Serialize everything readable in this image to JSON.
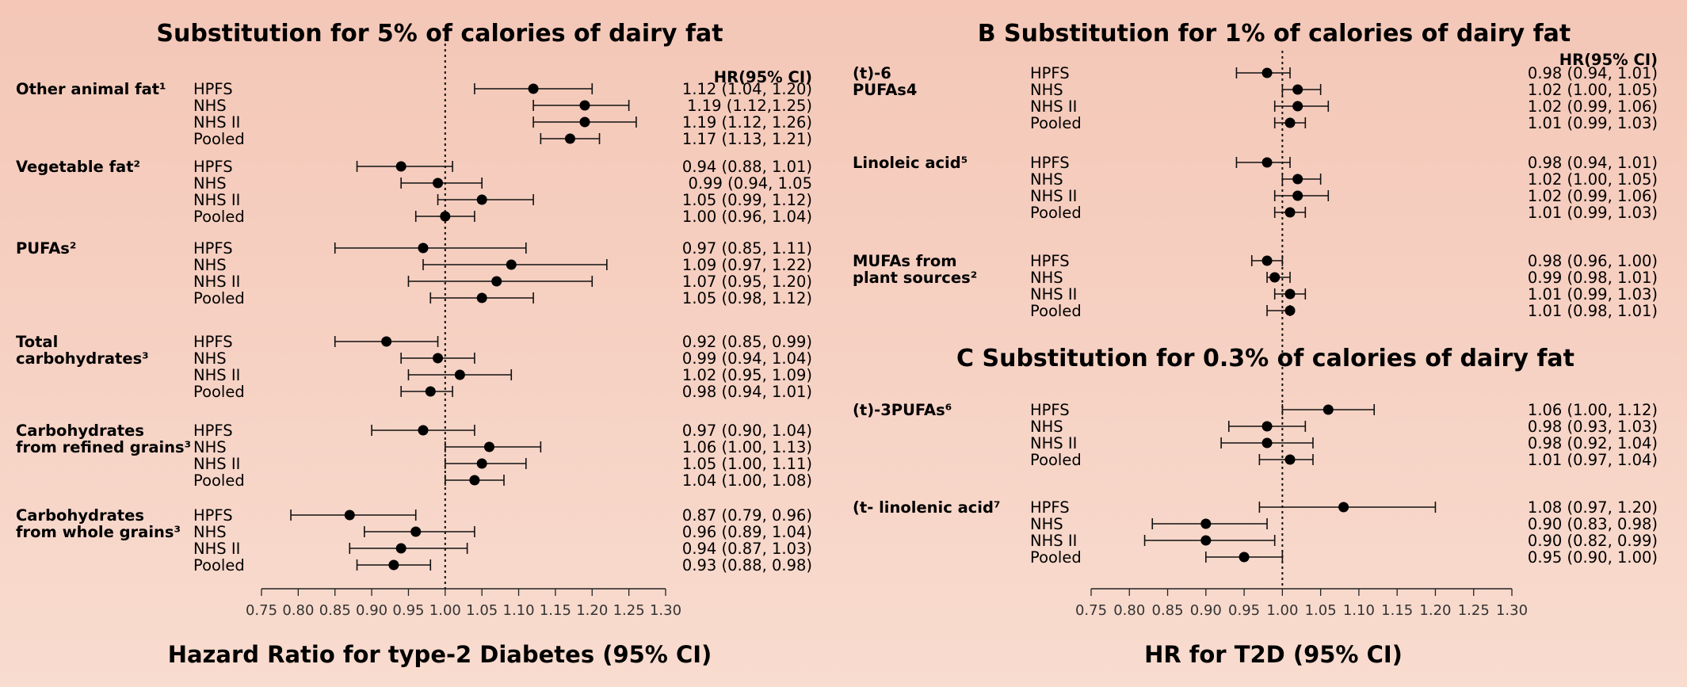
{
  "chart_data": [
    {
      "type": "forest",
      "title": "Substitution for 5% of calories of dairy fat",
      "xlabel": "Hazard Ratio for type-2 Diabetes (95% CI)",
      "hr_header": "HR(95% CI)",
      "xlim": [
        0.75,
        1.3
      ],
      "xticks": [
        "0.75",
        "0.80",
        "0.85",
        "0.90",
        "0.95",
        "1.00",
        "1.05",
        "1.10",
        "1.15",
        "1.20",
        "1.25",
        "1.30"
      ],
      "reference_line": 1.0,
      "groups": [
        {
          "label_lines": [
            "Other animal fat¹"
          ],
          "rows": [
            {
              "study": "HPFS",
              "hr": 1.12,
              "lo": 1.04,
              "hi": 1.2,
              "text": "1.12 (1.04, 1.20)"
            },
            {
              "study": "NHS",
              "hr": 1.19,
              "lo": 1.12,
              "hi": 1.25,
              "text": "1.19 (1.12,1.25)"
            },
            {
              "study": "NHS II",
              "hr": 1.19,
              "lo": 1.12,
              "hi": 1.26,
              "text": "1.19 (1.12, 1.26)"
            },
            {
              "study": "Pooled",
              "hr": 1.17,
              "lo": 1.13,
              "hi": 1.21,
              "text": "1.17 (1.13, 1.21)"
            }
          ]
        },
        {
          "label_lines": [
            "Vegetable fat²"
          ],
          "rows": [
            {
              "study": "HPFS",
              "hr": 0.94,
              "lo": 0.88,
              "hi": 1.01,
              "text": "0.94 (0.88, 1.01)"
            },
            {
              "study": "NHS",
              "hr": 0.99,
              "lo": 0.94,
              "hi": 1.05,
              "text": "0.99 (0.94, 1.05"
            },
            {
              "study": "NHS II",
              "hr": 1.05,
              "lo": 0.99,
              "hi": 1.12,
              "text": "1.05 (0.99, 1.12)"
            },
            {
              "study": "Pooled",
              "hr": 1.0,
              "lo": 0.96,
              "hi": 1.04,
              "text": "1.00 (0.96, 1.04)"
            }
          ]
        },
        {
          "label_lines": [
            "PUFAs²"
          ],
          "rows": [
            {
              "study": "HPFS",
              "hr": 0.97,
              "lo": 0.85,
              "hi": 1.11,
              "text": "0.97 (0.85, 1.11)"
            },
            {
              "study": "NHS",
              "hr": 1.09,
              "lo": 0.97,
              "hi": 1.22,
              "text": "1.09 (0.97, 1.22)"
            },
            {
              "study": "NHS II",
              "hr": 1.07,
              "lo": 0.95,
              "hi": 1.2,
              "text": "1.07 (0.95, 1.20)"
            },
            {
              "study": "Pooled",
              "hr": 1.05,
              "lo": 0.98,
              "hi": 1.12,
              "text": "1.05 (0.98, 1.12)"
            }
          ]
        },
        {
          "label_lines": [
            "Total",
            "carbohydrates³"
          ],
          "rows": [
            {
              "study": "HPFS",
              "hr": 0.92,
              "lo": 0.85,
              "hi": 0.99,
              "text": "0.92 (0.85, 0.99)"
            },
            {
              "study": "NHS",
              "hr": 0.99,
              "lo": 0.94,
              "hi": 1.04,
              "text": "0.99 (0.94, 1.04)"
            },
            {
              "study": "NHS II",
              "hr": 1.02,
              "lo": 0.95,
              "hi": 1.09,
              "text": "1.02 (0.95, 1.09)"
            },
            {
              "study": "Pooled",
              "hr": 0.98,
              "lo": 0.94,
              "hi": 1.01,
              "text": "0.98 (0.94, 1.01)"
            }
          ]
        },
        {
          "label_lines": [
            "Carbohydrates",
            "from refined grains³"
          ],
          "rows": [
            {
              "study": "HPFS",
              "hr": 0.97,
              "lo": 0.9,
              "hi": 1.04,
              "text": "0.97 (0.90, 1.04)"
            },
            {
              "study": "NHS",
              "hr": 1.06,
              "lo": 1.0,
              "hi": 1.13,
              "text": "1.06 (1.00, 1.13)"
            },
            {
              "study": "NHS II",
              "hr": 1.05,
              "lo": 1.0,
              "hi": 1.11,
              "text": "1.05 (1.00, 1.11)"
            },
            {
              "study": "Pooled",
              "hr": 1.04,
              "lo": 1.0,
              "hi": 1.08,
              "text": "1.04 (1.00, 1.08)"
            }
          ]
        },
        {
          "label_lines": [
            "Carbohydrates",
            "from whole grains³"
          ],
          "rows": [
            {
              "study": "HPFS",
              "hr": 0.87,
              "lo": 0.79,
              "hi": 0.96,
              "text": "0.87 (0.79, 0.96)"
            },
            {
              "study": "NHS",
              "hr": 0.96,
              "lo": 0.89,
              "hi": 1.04,
              "text": "0.96 (0.89, 1.04)"
            },
            {
              "study": "NHS II",
              "hr": 0.94,
              "lo": 0.87,
              "hi": 1.03,
              "text": "0.94 (0.87, 1.03)"
            },
            {
              "study": "Pooled",
              "hr": 0.93,
              "lo": 0.88,
              "hi": 0.98,
              "text": "0.93 (0.88, 0.98)"
            }
          ]
        }
      ]
    },
    {
      "type": "forest",
      "title": "B Substitution for 1% of calories of dairy fat",
      "subtitle": "C Substitution for 0.3% of calories of dairy fat",
      "xlabel": "HR for T2D (95% CI)",
      "hr_header": "HR(95% CI)",
      "xlim": [
        0.75,
        1.3
      ],
      "xticks": [
        "0.75",
        "0.80",
        "0.85",
        "0.90",
        "0.95",
        "1.00",
        "1.05",
        "1.10",
        "1.15",
        "1.20",
        "1.25",
        "1.30"
      ],
      "reference_line": 1.0,
      "groups": [
        {
          "label_lines": [
            "(t)-6",
            "PUFAs4"
          ],
          "rows": [
            {
              "study": "HPFS",
              "hr": 0.98,
              "lo": 0.94,
              "hi": 1.01,
              "text": "0.98 (0.94, 1.01)"
            },
            {
              "study": "NHS",
              "hr": 1.02,
              "lo": 1.0,
              "hi": 1.05,
              "text": "1.02 (1.00, 1.05)"
            },
            {
              "study": "NHS II",
              "hr": 1.02,
              "lo": 0.99,
              "hi": 1.06,
              "text": "1.02 (0.99, 1.06)"
            },
            {
              "study": "Pooled",
              "hr": 1.01,
              "lo": 0.99,
              "hi": 1.03,
              "text": "1.01 (0.99, 1.03)"
            }
          ]
        },
        {
          "label_lines": [
            "Linoleic acid⁵"
          ],
          "rows": [
            {
              "study": "HPFS",
              "hr": 0.98,
              "lo": 0.94,
              "hi": 1.01,
              "text": "0.98 (0.94, 1.01)"
            },
            {
              "study": "NHS",
              "hr": 1.02,
              "lo": 1.0,
              "hi": 1.05,
              "text": "1.02 (1.00, 1.05)"
            },
            {
              "study": "NHS II",
              "hr": 1.02,
              "lo": 0.99,
              "hi": 1.06,
              "text": "1.02 (0.99, 1.06)"
            },
            {
              "study": "Pooled",
              "hr": 1.01,
              "lo": 0.99,
              "hi": 1.03,
              "text": "1.01 (0.99, 1.03)"
            }
          ]
        },
        {
          "label_lines": [
            "MUFAs from",
            "plant sources²"
          ],
          "rows": [
            {
              "study": "HPFS",
              "hr": 0.98,
              "lo": 0.96,
              "hi": 1.0,
              "text": "0.98 (0.96, 1.00)"
            },
            {
              "study": "NHS",
              "hr": 0.99,
              "lo": 0.98,
              "hi": 1.01,
              "text": "0.99 (0.98, 1.01)"
            },
            {
              "study": "NHS II",
              "hr": 1.01,
              "lo": 0.99,
              "hi": 1.03,
              "text": "1.01 (0.99, 1.03)"
            },
            {
              "study": "Pooled",
              "hr": 1.01,
              "lo": 0.98,
              "hi": 1.01,
              "text": "1.01 (0.98, 1.01)"
            }
          ]
        },
        {
          "label_lines": [
            "(t)-3PUFAs⁶"
          ],
          "rows": [
            {
              "study": "HPFS",
              "hr": 1.06,
              "lo": 1.0,
              "hi": 1.12,
              "text": "1.06 (1.00, 1.12)"
            },
            {
              "study": "NHS",
              "hr": 0.98,
              "lo": 0.93,
              "hi": 1.03,
              "text": "0.98 (0.93, 1.03)"
            },
            {
              "study": "NHS II",
              "hr": 0.98,
              "lo": 0.92,
              "hi": 1.04,
              "text": "0.98 (0.92, 1.04)"
            },
            {
              "study": "Pooled",
              "hr": 1.01,
              "lo": 0.97,
              "hi": 1.04,
              "text": "1.01 (0.97, 1.04)"
            }
          ]
        },
        {
          "label_lines": [
            "(t- linolenic acid⁷"
          ],
          "rows": [
            {
              "study": "HPFS",
              "hr": 1.08,
              "lo": 0.97,
              "hi": 1.2,
              "text": "1.08 (0.97, 1.20)"
            },
            {
              "study": "NHS",
              "hr": 0.9,
              "lo": 0.83,
              "hi": 0.98,
              "text": "0.90 (0.83, 0.98)"
            },
            {
              "study": "NHS II",
              "hr": 0.9,
              "lo": 0.82,
              "hi": 0.99,
              "text": "0.90 (0.82, 0.99)"
            },
            {
              "study": "Pooled",
              "hr": 0.95,
              "lo": 0.9,
              "hi": 1.0,
              "text": "0.95 (0.90, 1.00)"
            }
          ]
        }
      ]
    }
  ]
}
